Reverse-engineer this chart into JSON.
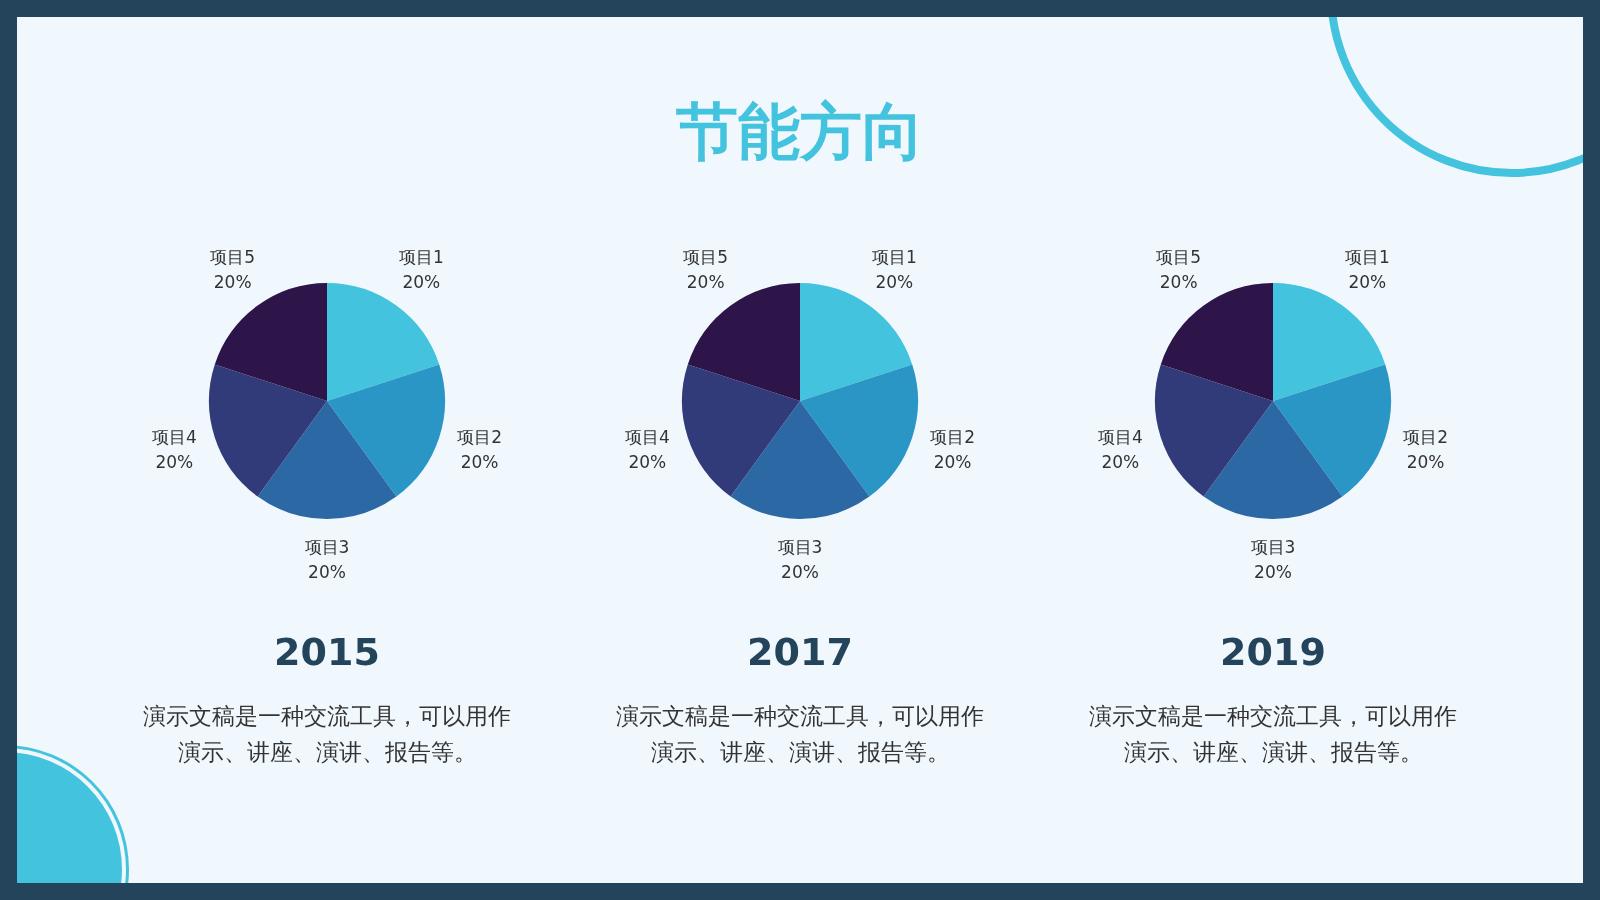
{
  "chart_data": [
    {
      "type": "other",
      "title": "节能方向"
    },
    {
      "type": "pie",
      "title": "2015",
      "categories": [
        "项目1",
        "项目2",
        "项目3",
        "项目4",
        "项目5"
      ],
      "values": [
        20,
        20,
        20,
        20,
        20
      ],
      "value_labels": [
        "20%",
        "20%",
        "20%",
        "20%",
        "20%"
      ],
      "colors": [
        "#43c3de",
        "#2a96c6",
        "#2c68a3",
        "#323b7a",
        "#2d1449"
      ],
      "annotations": [
        "演示文稿是一种交流工具，可以用作演示、讲座、演讲、报告等。"
      ]
    },
    {
      "type": "pie",
      "title": "2017",
      "categories": [
        "项目1",
        "项目2",
        "项目3",
        "项目4",
        "项目5"
      ],
      "values": [
        20,
        20,
        20,
        20,
        20
      ],
      "value_labels": [
        "20%",
        "20%",
        "20%",
        "20%",
        "20%"
      ],
      "colors": [
        "#43c3de",
        "#2a96c6",
        "#2c68a3",
        "#323b7a",
        "#2d1449"
      ],
      "annotations": [
        "演示文稿是一种交流工具，可以用作演示、讲座、演讲、报告等。"
      ]
    },
    {
      "type": "pie",
      "title": "2019",
      "categories": [
        "项目1",
        "项目2",
        "项目3",
        "项目4",
        "项目5"
      ],
      "values": [
        20,
        20,
        20,
        20,
        20
      ],
      "value_labels": [
        "20%",
        "20%",
        "20%",
        "20%",
        "20%"
      ],
      "colors": [
        "#43c3de",
        "#2a96c6",
        "#2c68a3",
        "#323b7a",
        "#2d1449"
      ],
      "annotations": [
        "演示文稿是一种交流工具，可以用作演示、讲座、演讲、报告等。"
      ]
    }
  ]
}
